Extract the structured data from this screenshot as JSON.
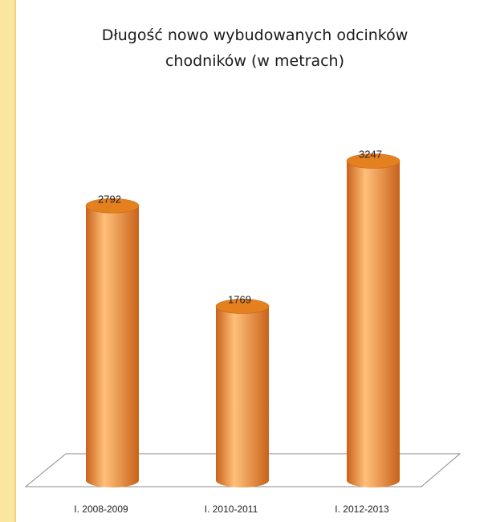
{
  "chart_data": {
    "type": "bar",
    "style": "3d-cylinder",
    "title": "Długość nowo wybudowanych odcinków\nchodników (w metrach)",
    "categories": [
      "I. 2008-2009",
      "I. 2010-2011",
      "I. 2012-2013"
    ],
    "values": [
      2792,
      1769,
      3247
    ],
    "data_labels": [
      "2792",
      "1769",
      "3247"
    ],
    "grid": false,
    "legend": "none",
    "colors": {
      "bar": "#f08a2c",
      "bar_dark": "#c9621a",
      "bar_light": "#ffc07a",
      "top": "#e5801f",
      "background": "#fbe6a0"
    }
  }
}
